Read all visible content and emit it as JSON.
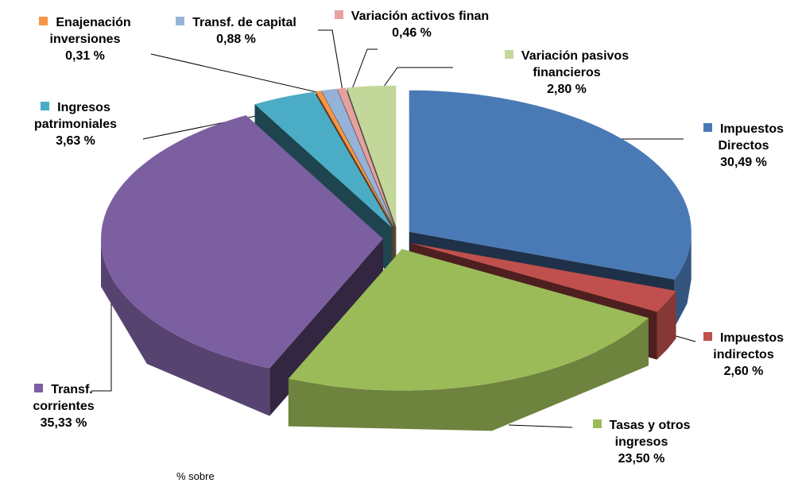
{
  "chart_data": {
    "type": "pie",
    "categories": [
      "Impuestos Directos",
      "Impuestos indirectos",
      "Tasas y otros ingresos",
      "Transf. corrientes",
      "Ingresos patrimoniales",
      "Enajenación inversiones",
      "Transf. de capital",
      "Variación activos finan",
      "Variación pasivos financieros"
    ],
    "values": [
      30.49,
      2.6,
      23.5,
      35.33,
      3.63,
      0.31,
      0.88,
      0.46,
      2.8
    ],
    "value_labels": [
      "30,49 %",
      "2,60 %",
      "23,50 %",
      "35,33 %",
      "3,63 %",
      "0,31 %",
      "0,88 %",
      "0,46 %",
      "2,80 %"
    ],
    "colors": [
      "#4a7ab5",
      "#c0504d",
      "#9bbb59",
      "#7c5fa0",
      "#4bacc6",
      "#f79646",
      "#95b3d7",
      "#e6a0a0",
      "#c4d79b"
    ],
    "caption": "% sobre"
  }
}
